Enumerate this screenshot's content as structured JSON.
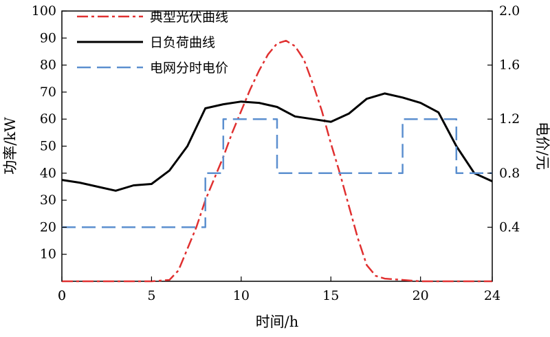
{
  "chart_data": {
    "type": "line",
    "xlabel": "时间/h",
    "ylabel": "功率/kW",
    "y2label": "电价/元",
    "xlim": [
      0,
      24
    ],
    "ylim": [
      0,
      100
    ],
    "y2lim": [
      0,
      2.0
    ],
    "xticks": [
      "0",
      "5",
      "10",
      "15",
      "20",
      "24"
    ],
    "yticks": [
      "10",
      "20",
      "30",
      "40",
      "50",
      "60",
      "70",
      "80",
      "90",
      "100"
    ],
    "y2ticks": [
      "0.4",
      "0.8",
      "1.2",
      "1.6",
      "2.0"
    ],
    "grid": false,
    "legend_position": "top-left",
    "series": [
      {
        "name": "典型光伏曲线",
        "axis": "left",
        "color": "#e03030",
        "style": "dash-dot",
        "x": [
          0,
          5,
          6,
          6.5,
          7,
          7.5,
          8,
          8.5,
          9,
          9.5,
          10,
          10.5,
          11,
          11.5,
          12,
          12.5,
          13,
          13.5,
          14,
          14.5,
          15,
          15.5,
          16,
          16.5,
          17,
          17.5,
          18,
          19,
          20,
          21,
          22,
          23,
          24
        ],
        "y": [
          0,
          0,
          0.5,
          4,
          12,
          20,
          30,
          38,
          46,
          55,
          63,
          71,
          78,
          84,
          88,
          89,
          87,
          82,
          73,
          63,
          51,
          40,
          28,
          16,
          6,
          2,
          1,
          0.5,
          0,
          0,
          0,
          0,
          0
        ]
      },
      {
        "name": "日负荷曲线",
        "axis": "left",
        "color": "#000000",
        "style": "solid",
        "x": [
          0,
          1,
          2,
          3,
          4,
          5,
          6,
          7,
          8,
          9,
          10,
          11,
          12,
          13,
          14,
          15,
          16,
          17,
          18,
          19,
          20,
          21,
          22,
          23,
          24
        ],
        "y": [
          37.5,
          36.5,
          35,
          33.5,
          35.5,
          36,
          41,
          50,
          64,
          65.5,
          66.5,
          66,
          64.5,
          61,
          60,
          59,
          62,
          67.5,
          69.5,
          68,
          66,
          62.5,
          50,
          40,
          37
        ]
      },
      {
        "name": "电网分时电价",
        "axis": "right",
        "color": "#5b8fcf",
        "style": "dash",
        "x": [
          0,
          8,
          8,
          9,
          9,
          12,
          12,
          19,
          19,
          22,
          22,
          24
        ],
        "y": [
          0.4,
          0.4,
          0.8,
          0.8,
          1.2,
          1.2,
          0.8,
          0.8,
          1.2,
          1.2,
          0.8,
          0.8
        ]
      }
    ]
  }
}
